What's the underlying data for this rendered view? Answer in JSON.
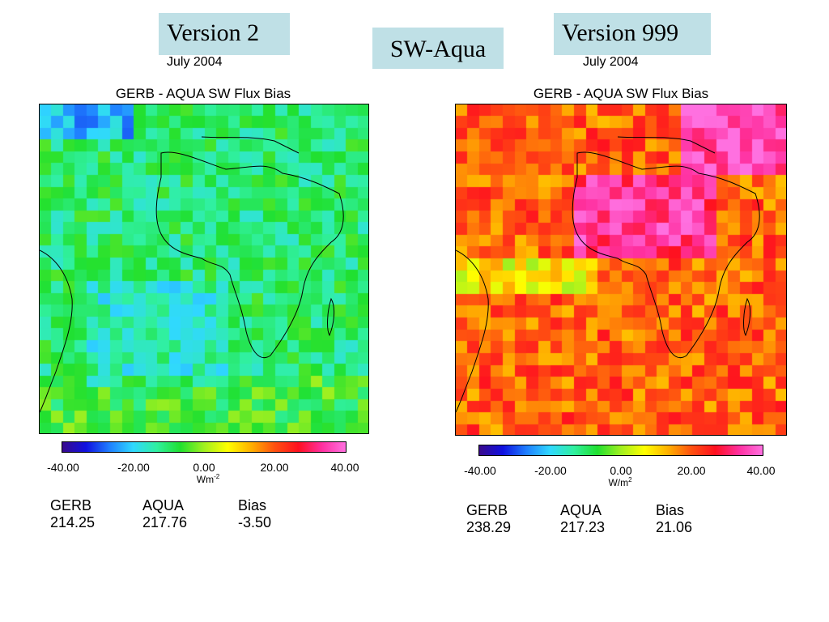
{
  "header": {
    "left_label": "Version 2",
    "center_label": "SW-Aqua",
    "right_label": "Version 999"
  },
  "panels": [
    {
      "date": "July 2004",
      "title": "GERB - AQUA SW Flux Bias",
      "unit": "Wm",
      "unit_sup": "-2",
      "colorbar_ticks": [
        "-40.00",
        "-20.00",
        "0.00",
        "20.00",
        "40.00"
      ],
      "stats": {
        "labels": [
          "GERB",
          "AQUA",
          "Bias"
        ],
        "values": [
          "214.25",
          "217.76",
          "-3.50"
        ]
      }
    },
    {
      "date": "July 2004",
      "title": "GERB - AQUA SW Flux Bias",
      "unit": "W/m",
      "unit_sup": "2",
      "colorbar_ticks": [
        "-40.00",
        "-20.00",
        "0.00",
        "20.00",
        "40.00"
      ],
      "stats": {
        "labels": [
          "GERB",
          "AQUA",
          "Bias"
        ],
        "values": [
          "238.29",
          "217.23",
          "21.06"
        ]
      }
    }
  ],
  "colorbar": {
    "range": [
      -40,
      40
    ],
    "colors": [
      "#3a0a8c",
      "#1010e0",
      "#1f7fff",
      "#30d8ff",
      "#30f0a0",
      "#20e030",
      "#a0f020",
      "#ffff00",
      "#ffb000",
      "#ff5010",
      "#ff1020",
      "#ff30a0",
      "#ff70e0"
    ]
  }
}
